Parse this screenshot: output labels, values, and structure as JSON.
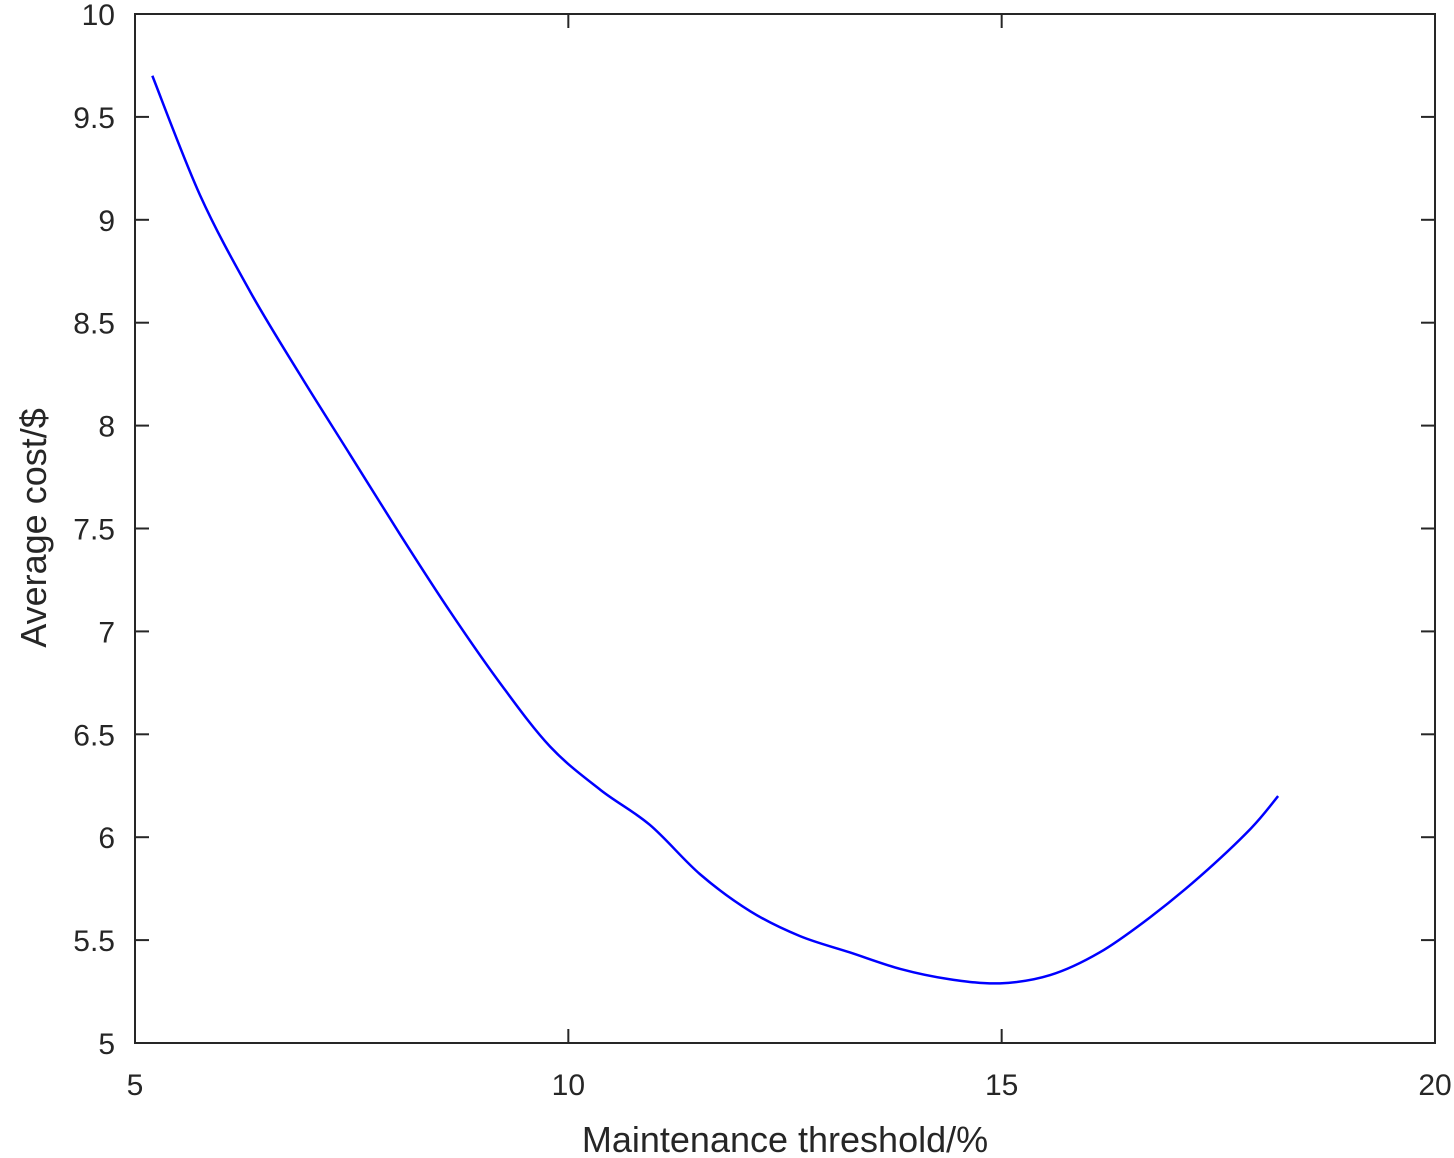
{
  "chart_data": {
    "type": "line",
    "xlabel": "Maintenance threshold/%",
    "ylabel": "Average cost/$",
    "x": [
      5.2,
      5.75,
      6.33,
      6.9,
      7.48,
      8.06,
      8.63,
      9.21,
      9.79,
      10.37,
      10.94,
      11.52,
      12.1,
      12.67,
      13.25,
      13.83,
      14.4,
      14.98,
      15.56,
      16.13,
      16.71,
      17.29,
      17.87,
      18.19
    ],
    "series": [
      {
        "color": "#0000ff",
        "values": [
          9.7,
          9.12,
          8.65,
          8.25,
          7.86,
          7.47,
          7.1,
          6.75,
          6.44,
          6.23,
          6.06,
          5.82,
          5.64,
          5.52,
          5.44,
          5.36,
          5.31,
          5.29,
          5.33,
          5.44,
          5.61,
          5.81,
          6.04,
          6.2
        ]
      }
    ],
    "xlim": [
      5,
      20
    ],
    "xticks": [
      5,
      10,
      15,
      20
    ],
    "ylim": [
      5,
      10
    ],
    "yticks": [
      5,
      5.5,
      6,
      6.5,
      7,
      7.5,
      8,
      8.5,
      9,
      9.5,
      10
    ]
  }
}
